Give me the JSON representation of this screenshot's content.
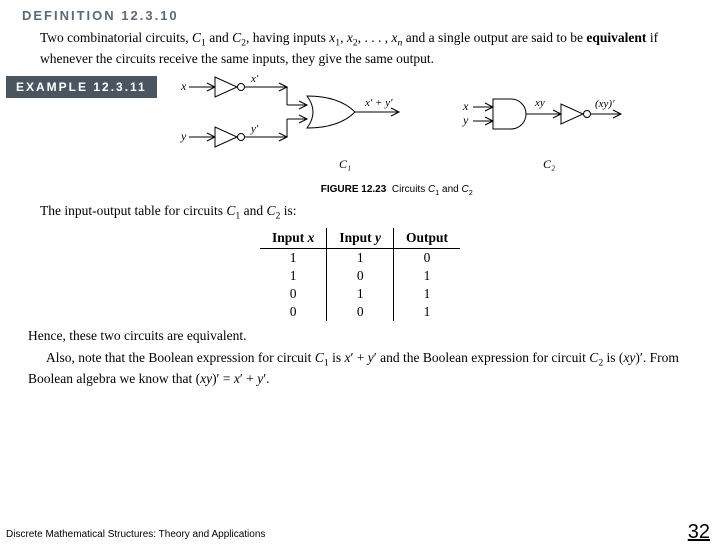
{
  "definition": {
    "label": "DEFINITION 12.3.10",
    "body_html": "Two combinatorial circuits, <i>C</i><span class='sub'>1</span> and <i>C</i><span class='sub'>2</span>, having inputs <i>x</i><span class='sub'>1</span>, <i>x</i><span class='sub'>2</span>, . . . , <i>x</i><span class='sub'><i>n</i></span> and a single output are said to be <b>equivalent</b> if whenever the circuits receive the same inputs, they give the same output."
  },
  "example": {
    "label": "EXAMPLE 12.3.11"
  },
  "figure": {
    "caption_bold": "FIGURE 12.23",
    "caption_rest_html": "Circuits <i>C</i><span class='sub'>1</span> and <i>C</i><span class='sub'>2</span>",
    "c1_label": "C₁",
    "c2_label": "C₂",
    "labels": {
      "x": "x",
      "y": "y",
      "xprime": "x′",
      "yprime": "y′",
      "xory": "x′ + y′",
      "xy": "xy",
      "xyprime": "(xy)′"
    },
    "stroke": "#000000",
    "fill": "#ffffff"
  },
  "table_intro_html": "The input-output table for circuits <i>C</i><span class='sub'>1</span> and <i>C</i><span class='sub'>2</span> is:",
  "truth_table": {
    "headers": [
      "Input x",
      "Input y",
      "Output"
    ],
    "headers_html": [
      "Input <i>x</i>",
      "Input <i>y</i>",
      "Output"
    ],
    "rows": [
      [
        1,
        1,
        0
      ],
      [
        1,
        0,
        1
      ],
      [
        0,
        1,
        1
      ],
      [
        0,
        0,
        1
      ]
    ]
  },
  "conclusion": {
    "line1": "Hence, these two circuits are equivalent.",
    "line2_html": "Also, note that the Boolean expression for circuit <i>C</i><span class='sub'>1</span> is <i>x</i>′ + <i>y</i>′ and the Boolean expression for circuit <i>C</i><span class='sub'>2</span> is (<i>xy</i>)′. From Boolean algebra we know that (<i>xy</i>)′ = <i>x</i>′ + <i>y</i>′."
  },
  "footer": "Discrete Mathematical Structures: Theory and Applications",
  "page_number": "32"
}
